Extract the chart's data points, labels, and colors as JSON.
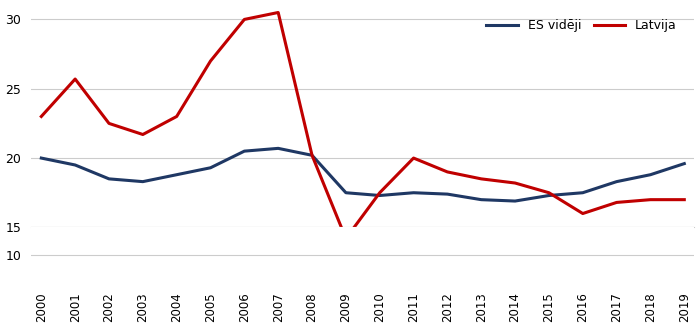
{
  "years": [
    2000,
    2001,
    2002,
    2003,
    2004,
    2005,
    2006,
    2007,
    2008,
    2009,
    2010,
    2011,
    2012,
    2013,
    2014,
    2015,
    2016,
    2017,
    2018,
    2019
  ],
  "es_vidēji": [
    20.0,
    19.5,
    18.5,
    18.3,
    18.8,
    19.3,
    20.5,
    20.7,
    20.2,
    17.5,
    17.3,
    17.5,
    17.4,
    17.0,
    16.9,
    17.3,
    17.5,
    18.3,
    18.8,
    19.6
  ],
  "latvija": [
    23.0,
    25.7,
    22.5,
    21.7,
    23.0,
    27.0,
    30.0,
    30.5,
    20.2,
    14.2,
    17.5,
    20.0,
    19.0,
    18.5,
    18.2,
    17.5,
    16.0,
    16.8,
    17.0,
    17.0
  ],
  "es_color": "#1F3864",
  "latvija_color": "#C00000",
  "line_width": 2.2,
  "plot_ylim": [
    15,
    31
  ],
  "full_ylim": [
    10,
    31
  ],
  "yticks": [
    10,
    15,
    20,
    25,
    30
  ],
  "plot_yticks": [
    15,
    20,
    25,
    30
  ],
  "xlim": [
    2000,
    2019
  ],
  "legend_es": "ES vidēji",
  "legend_lv": "Latvija",
  "grid_color": "#cccccc",
  "bg_color": "#ffffff"
}
